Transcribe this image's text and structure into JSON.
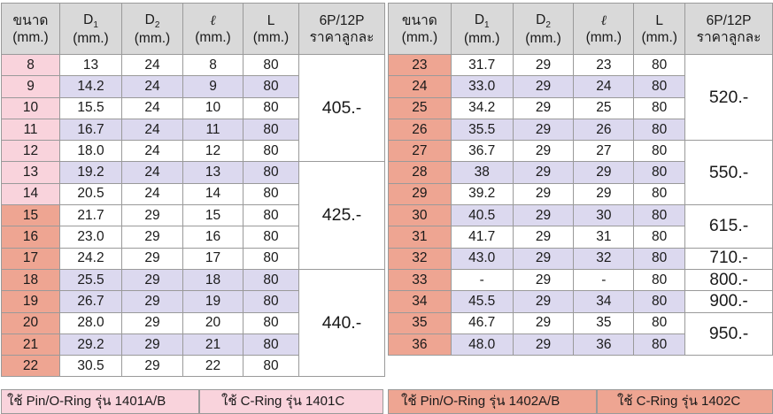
{
  "headers": {
    "size_line1": "ขนาด",
    "size_line2": "(mm.)",
    "d1_letter": "D",
    "d1_sub": "1",
    "d2_letter": "D",
    "d2_sub": "2",
    "ell_symbol": "ℓ",
    "l_letter": "L",
    "unit": "(mm.)",
    "price_line1": "6P/12P",
    "price_line2": "ราคาลูกละ"
  },
  "left_rows": [
    {
      "size": "8",
      "d1": "13",
      "d2": "24",
      "ell": "8",
      "l": "80"
    },
    {
      "size": "9",
      "d1": "14.2",
      "d2": "24",
      "ell": "9",
      "l": "80"
    },
    {
      "size": "10",
      "d1": "15.5",
      "d2": "24",
      "ell": "10",
      "l": "80"
    },
    {
      "size": "11",
      "d1": "16.7",
      "d2": "24",
      "ell": "11",
      "l": "80"
    },
    {
      "size": "12",
      "d1": "18.0",
      "d2": "24",
      "ell": "12",
      "l": "80"
    },
    {
      "size": "13",
      "d1": "19.2",
      "d2": "24",
      "ell": "13",
      "l": "80"
    },
    {
      "size": "14",
      "d1": "20.5",
      "d2": "24",
      "ell": "14",
      "l": "80"
    },
    {
      "size": "15",
      "d1": "21.7",
      "d2": "29",
      "ell": "15",
      "l": "80"
    },
    {
      "size": "16",
      "d1": "23.0",
      "d2": "29",
      "ell": "16",
      "l": "80"
    },
    {
      "size": "17",
      "d1": "24.2",
      "d2": "29",
      "ell": "17",
      "l": "80"
    },
    {
      "size": "18",
      "d1": "25.5",
      "d2": "29",
      "ell": "18",
      "l": "80"
    },
    {
      "size": "19",
      "d1": "26.7",
      "d2": "29",
      "ell": "19",
      "l": "80"
    },
    {
      "size": "20",
      "d1": "28.0",
      "d2": "29",
      "ell": "20",
      "l": "80"
    },
    {
      "size": "21",
      "d1": "29.2",
      "d2": "29",
      "ell": "21",
      "l": "80"
    },
    {
      "size": "22",
      "d1": "30.5",
      "d2": "29",
      "ell": "22",
      "l": "80"
    }
  ],
  "left_prices": [
    "405.-",
    "425.-",
    "440.-"
  ],
  "right_rows": [
    {
      "size": "23",
      "d1": "31.7",
      "d2": "29",
      "ell": "23",
      "l": "80"
    },
    {
      "size": "24",
      "d1": "33.0",
      "d2": "29",
      "ell": "24",
      "l": "80"
    },
    {
      "size": "25",
      "d1": "34.2",
      "d2": "29",
      "ell": "25",
      "l": "80"
    },
    {
      "size": "26",
      "d1": "35.5",
      "d2": "29",
      "ell": "26",
      "l": "80"
    },
    {
      "size": "27",
      "d1": "36.7",
      "d2": "29",
      "ell": "27",
      "l": "80"
    },
    {
      "size": "28",
      "d1": "38",
      "d2": "29",
      "ell": "29",
      "l": "80"
    },
    {
      "size": "29",
      "d1": "39.2",
      "d2": "29",
      "ell": "29",
      "l": "80"
    },
    {
      "size": "30",
      "d1": "40.5",
      "d2": "29",
      "ell": "30",
      "l": "80"
    },
    {
      "size": "31",
      "d1": "41.7",
      "d2": "29",
      "ell": "31",
      "l": "80"
    },
    {
      "size": "32",
      "d1": "43.0",
      "d2": "29",
      "ell": "32",
      "l": "80"
    },
    {
      "size": "33",
      "d1": "-",
      "d2": "29",
      "ell": "-",
      "l": "80"
    },
    {
      "size": "34",
      "d1": "45.5",
      "d2": "29",
      "ell": "34",
      "l": "80"
    },
    {
      "size": "35",
      "d1": "46.7",
      "d2": "29",
      "ell": "35",
      "l": "80"
    },
    {
      "size": "36",
      "d1": "48.0",
      "d2": "29",
      "ell": "36",
      "l": "80"
    }
  ],
  "right_prices": [
    "520.-",
    "550.-",
    "615.-",
    "710.-",
    "800.-",
    "900.-",
    "950.-"
  ],
  "footer": {
    "left_pin": "ใช้ Pin/O-Ring รุ่น 1401A/B",
    "left_cring": "ใช้ C-Ring รุ่น 1401C",
    "right_pin": "ใช้ Pin/O-Ring รุ่น 1402A/B",
    "right_cring": "ใช้ C-Ring รุ่น 1402C"
  },
  "colors": {
    "header_bg": "#d9d9d9",
    "size_light_pink": "#f9d3dc",
    "size_salmon": "#eea592",
    "band_lavender": "#dcd9ef",
    "grid_line": "#9a9a9a"
  }
}
